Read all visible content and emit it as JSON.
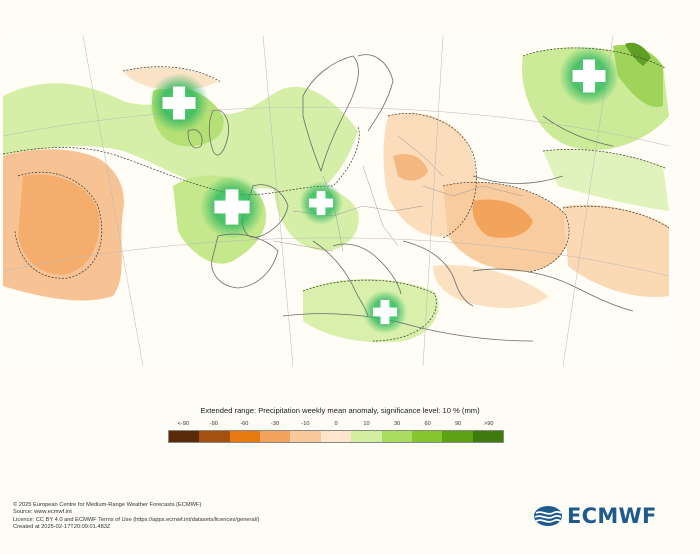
{
  "legend": {
    "title": "Extended range: Precipitation weekly mean anomaly, significance level: 10 % (mm)",
    "ticks": [
      "<-90",
      "-90",
      "-60",
      "-30",
      "-10",
      "0",
      "10",
      "30",
      "60",
      "90",
      ">90"
    ],
    "colors": [
      "#5a2b08",
      "#a4500f",
      "#e77b12",
      "#f4a35c",
      "#f9c99b",
      "#fde6cc",
      "#d2ee9e",
      "#a9dc5f",
      "#85c52e",
      "#5da115",
      "#3f7a0e"
    ]
  },
  "map": {
    "land_color": "#fffdf6",
    "sea_color": "#ffffff",
    "markers": [
      {
        "id": "atlantic-north",
        "symbol": "plus"
      },
      {
        "id": "russia",
        "symbol": "plus"
      },
      {
        "id": "france-west",
        "symbol": "plus"
      },
      {
        "id": "central-europe",
        "symbol": "plus"
      },
      {
        "id": "central-mediterranean",
        "symbol": "plus"
      }
    ]
  },
  "credits": {
    "line1": "© 2025 European Centre for Medium-Range Weather Forecasts (ECMWF)",
    "line2": "Source: www.ecmwf.int",
    "line3": "Licence: CC BY 4.0 and ECMWF Terms of Use (https://apps.ecmwf.int/datasets/licences/general/)",
    "line4": "Created at 2025-02-17T20:09:01.483Z"
  },
  "logo": {
    "text": "ECMWF"
  }
}
